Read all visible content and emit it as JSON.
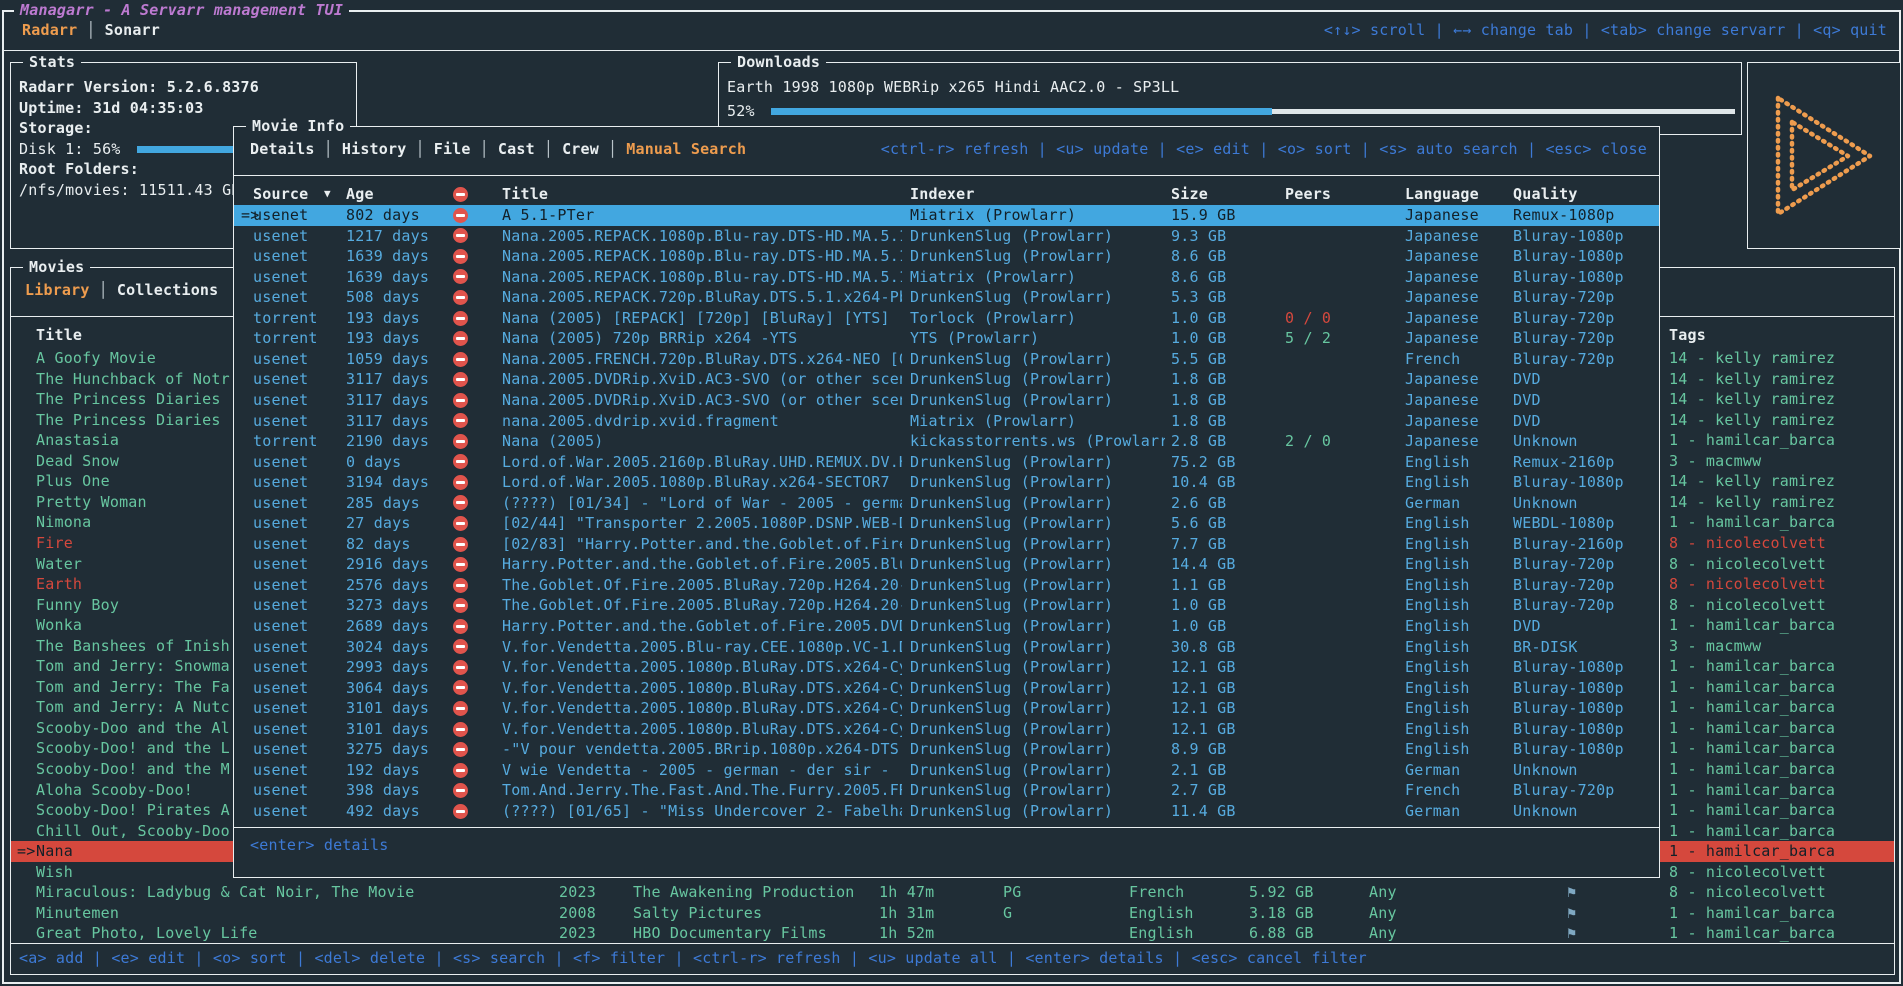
{
  "colors": {
    "background": "#202d36",
    "foreground": "#e9eef0",
    "accent_orange": "#ee9c4e",
    "title_magenta": "#bd7ad1",
    "keybind_blue": "#3d7ad6",
    "row_blue": "#56abdf",
    "green": "#67c6a0",
    "red": "#d5483d",
    "selection_blue": "#42a7e0",
    "selection_red": "#d5483d"
  },
  "app": {
    "title": "Managarr - A Servarr management TUI",
    "tabs": [
      {
        "label": "Radarr",
        "active": true
      },
      {
        "label": "Sonarr",
        "active": false
      }
    ],
    "shortcuts": [
      {
        "key": "<↑↓>",
        "label": "scroll"
      },
      {
        "key": "←→",
        "label": "change tab"
      },
      {
        "key": "<tab>",
        "label": "change servarr"
      },
      {
        "key": "<q>",
        "label": "quit"
      }
    ]
  },
  "stats": {
    "title": "Stats",
    "version_line": "Radarr Version:  5.2.6.8376",
    "uptime_line": "Uptime: 31d 04:35:03",
    "storage_label": "Storage:",
    "disk_line": "Disk 1: 56%",
    "disk_percent": 56,
    "root_label": "Root Folders:",
    "root_line": "/nfs/movies: 11511.43 GB"
  },
  "downloads": {
    "title": "Downloads",
    "release": "Earth 1998 1080p WEBRip x265 Hindi AAC2.0 - SP3LL",
    "percent_label": "52%",
    "percent_value": 52
  },
  "logo": {
    "icon": "play-logo"
  },
  "library": {
    "title": "Movies",
    "tabs": [
      {
        "label": "Library",
        "active": true
      },
      {
        "label": "Collections",
        "active": false
      }
    ],
    "columns": {
      "title": "Title",
      "tags": "Tags"
    },
    "items": [
      {
        "title": "A Goofy Movie",
        "tag": "14 - kelly ramirez"
      },
      {
        "title": "The Hunchback of Notr",
        "tag": "14 - kelly ramirez"
      },
      {
        "title": "The Princess Diaries",
        "tag": "14 - kelly ramirez"
      },
      {
        "title": "The Princess Diaries",
        "tag": "14 - kelly ramirez"
      },
      {
        "title": "Anastasia",
        "tag": "1 - hamilcar_barca"
      },
      {
        "title": "Dead Snow",
        "tag": "3 - macmww"
      },
      {
        "title": "Plus One",
        "tag": "14 - kelly ramirez"
      },
      {
        "title": "Pretty Woman",
        "tag": "14 - kelly ramirez"
      },
      {
        "title": "Nimona",
        "tag": "1 - hamilcar_barca"
      },
      {
        "title": "Fire",
        "titleColor": "red",
        "tag": "8 - nicolecolvett",
        "tagColor": "red"
      },
      {
        "title": "Water",
        "tag": "8 - nicolecolvett"
      },
      {
        "title": "Earth",
        "titleColor": "red",
        "tag": "8 - nicolecolvett",
        "tagColor": "red"
      },
      {
        "title": "Funny Boy",
        "tag": "8 - nicolecolvett"
      },
      {
        "title": "Wonka",
        "tag": "1 - hamilcar_barca"
      },
      {
        "title": "The Banshees of Inish",
        "tag": "3 - macmww"
      },
      {
        "title": "Tom and Jerry: Snowma",
        "tag": "1 - hamilcar_barca"
      },
      {
        "title": "Tom and Jerry: The Fa",
        "tag": "1 - hamilcar_barca"
      },
      {
        "title": "Tom and Jerry: A Nutc",
        "tag": "1 - hamilcar_barca"
      },
      {
        "title": "Scooby-Doo and the Al",
        "tag": "1 - hamilcar_barca"
      },
      {
        "title": "Scooby-Doo! and the L",
        "tag": "1 - hamilcar_barca"
      },
      {
        "title": "Scooby-Doo! and the M",
        "tag": "1 - hamilcar_barca"
      },
      {
        "title": "Aloha Scooby-Doo!",
        "tag": "1 - hamilcar_barca"
      },
      {
        "title": "Scooby-Doo! Pirates A",
        "tag": "1 - hamilcar_barca"
      },
      {
        "title": "Chill Out, Scooby-Doo",
        "tag": "1 - hamilcar_barca"
      },
      {
        "title": "Nana",
        "selected": true,
        "marker": "=>",
        "tag": "1 - hamilcar_barca"
      },
      {
        "title": "Wish",
        "tag": "8 - nicolecolvett"
      },
      {
        "title": "Miraculous: Ladybug & Cat Noir, The Movie",
        "year": "2023",
        "studio": "The Awakening Production",
        "runtime": "1h 47m",
        "rating": "PG",
        "language": "French",
        "size": "5.92 GB",
        "profile": "Any",
        "monitored": true,
        "tag": "8 - nicolecolvett"
      },
      {
        "title": "Minutemen",
        "year": "2008",
        "studio": "Salty Pictures",
        "runtime": "1h 31m",
        "rating": "G",
        "language": "English",
        "size": "3.18 GB",
        "profile": "Any",
        "monitored": true,
        "tag": "1 - hamilcar_barca"
      },
      {
        "title": "Great Photo, Lovely Life",
        "year": "2023",
        "studio": "HBO Documentary Films",
        "runtime": "1h 52m",
        "rating": "",
        "language": "English",
        "size": "6.88 GB",
        "profile": "Any",
        "monitored": true,
        "tag": "1 - hamilcar_barca"
      }
    ],
    "shortcuts": [
      {
        "key": "<a>",
        "label": "add"
      },
      {
        "key": "<e>",
        "label": "edit"
      },
      {
        "key": "<o>",
        "label": "sort"
      },
      {
        "key": "<del>",
        "label": "delete"
      },
      {
        "key": "<s>",
        "label": "search"
      },
      {
        "key": "<f>",
        "label": "filter"
      },
      {
        "key": "<ctrl-r>",
        "label": "refresh"
      },
      {
        "key": "<u>",
        "label": "update all"
      },
      {
        "key": "<enter>",
        "label": "details"
      },
      {
        "key": "<esc>",
        "label": "cancel filter"
      }
    ]
  },
  "search_modal": {
    "title": "Movie Info",
    "tabs": [
      {
        "label": "Details",
        "active": false
      },
      {
        "label": "History",
        "active": false
      },
      {
        "label": "File",
        "active": false
      },
      {
        "label": "Cast",
        "active": false
      },
      {
        "label": "Crew",
        "active": false
      },
      {
        "label": "Manual Search",
        "active": true
      }
    ],
    "shortcuts": [
      {
        "key": "<ctrl-r>",
        "label": "refresh"
      },
      {
        "key": "<u>",
        "label": "update"
      },
      {
        "key": "<e>",
        "label": "edit"
      },
      {
        "key": "<o>",
        "label": "sort"
      },
      {
        "key": "<s>",
        "label": "auto search"
      },
      {
        "key": "<esc>",
        "label": "close"
      }
    ],
    "columns": {
      "source": "Source",
      "sort_icon": "▼",
      "age": "Age",
      "title": "Title",
      "indexer": "Indexer",
      "size": "Size",
      "peers": "Peers",
      "language": "Language",
      "quality": "Quality"
    },
    "rows": [
      {
        "selected": true,
        "source": "usenet",
        "age": "802 days",
        "title": "A 5.1-PTer",
        "indexer": "Miatrix (Prowlarr)",
        "size": "15.9 GB",
        "peers": "",
        "language": "Japanese",
        "quality": "Remux-1080p"
      },
      {
        "source": "usenet",
        "age": "1217 days",
        "title": "Nana.2005.REPACK.1080p.Blu-ray.DTS-HD.MA.5.1",
        "indexer": "DrunkenSlug (Prowlarr)",
        "size": "9.3 GB",
        "peers": "",
        "language": "Japanese",
        "quality": "Bluray-1080p"
      },
      {
        "source": "usenet",
        "age": "1639 days",
        "title": "Nana.2005.REPACK.1080p.Blu-ray.DTS-HD.MA.5.1",
        "indexer": "DrunkenSlug (Prowlarr)",
        "size": "8.6 GB",
        "peers": "",
        "language": "Japanese",
        "quality": "Bluray-1080p"
      },
      {
        "source": "usenet",
        "age": "1639 days",
        "title": "Nana.2005.REPACK.1080p.Blu-ray.DTS-HD.MA.5.1",
        "indexer": "Miatrix (Prowlarr)",
        "size": "8.6 GB",
        "peers": "",
        "language": "Japanese",
        "quality": "Bluray-1080p"
      },
      {
        "source": "usenet",
        "age": "508 days",
        "title": "Nana.2005.REPACK.720p.BluRay.DTS.5.1.x264-Pb",
        "indexer": "DrunkenSlug (Prowlarr)",
        "size": "5.3 GB",
        "peers": "",
        "language": "Japanese",
        "quality": "Bluray-720p"
      },
      {
        "source": "torrent",
        "age": "193 days",
        "title": "Nana (2005) [REPACK] [720p] [BluRay] [YTS]",
        "indexer": "Torlock (Prowlarr)",
        "size": "1.0 GB",
        "peers": "0 / 0",
        "peersColor": "red",
        "language": "Japanese",
        "quality": "Bluray-720p"
      },
      {
        "source": "torrent",
        "age": "193 days",
        "title": "Nana (2005) 720p BRRip x264 -YTS",
        "indexer": "YTS (Prowlarr)",
        "size": "1.0 GB",
        "peers": "5 / 2",
        "peersColor": "green",
        "language": "Japanese",
        "quality": "Bluray-720p"
      },
      {
        "source": "usenet",
        "age": "1059 days",
        "title": "Nana.2005.FRENCH.720p.BluRay.DTS.x264-NEO [0",
        "indexer": "DrunkenSlug (Prowlarr)",
        "size": "5.5 GB",
        "peers": "",
        "language": "French",
        "quality": "Bluray-720p"
      },
      {
        "source": "usenet",
        "age": "3117 days",
        "title": "Nana.2005.DVDRip.XviD.AC3-SVO (or other scen",
        "indexer": "DrunkenSlug (Prowlarr)",
        "size": "1.8 GB",
        "peers": "",
        "language": "Japanese",
        "quality": "DVD"
      },
      {
        "source": "usenet",
        "age": "3117 days",
        "title": "Nana.2005.DVDRip.XviD.AC3-SVO (or other scen",
        "indexer": "DrunkenSlug (Prowlarr)",
        "size": "1.8 GB",
        "peers": "",
        "language": "Japanese",
        "quality": "DVD"
      },
      {
        "source": "usenet",
        "age": "3117 days",
        "title": "nana.2005.dvdrip.xvid.fragment",
        "indexer": "Miatrix (Prowlarr)",
        "size": "1.8 GB",
        "peers": "",
        "language": "Japanese",
        "quality": "DVD"
      },
      {
        "source": "torrent",
        "age": "2190 days",
        "title": "Nana (2005)",
        "indexer": "kickasstorrents.ws (Prowlarr",
        "size": "2.8 GB",
        "peers": "2 / 0",
        "peersColor": "green",
        "language": "Japanese",
        "quality": "Unknown"
      },
      {
        "source": "usenet",
        "age": "0 days",
        "title": "Lord.of.War.2005.2160p.BluRay.UHD.REMUX.DV.H",
        "indexer": "DrunkenSlug (Prowlarr)",
        "size": "75.2 GB",
        "peers": "",
        "language": "English",
        "quality": "Remux-2160p"
      },
      {
        "source": "usenet",
        "age": "3194 days",
        "title": "Lord.of.War.2005.1080p.BluRay.x264-SECTOR7",
        "indexer": "DrunkenSlug (Prowlarr)",
        "size": "10.4 GB",
        "peers": "",
        "language": "English",
        "quality": "Bluray-1080p"
      },
      {
        "source": "usenet",
        "age": "285 days",
        "title": "(????) [01/34] - \"Lord of War - 2005 - germa",
        "indexer": "DrunkenSlug (Prowlarr)",
        "size": "2.6 GB",
        "peers": "",
        "language": "German",
        "quality": "Unknown"
      },
      {
        "source": "usenet",
        "age": "27 days",
        "title": "[02/44] \"Transporter 2.2005.1080P.DSNP.WEB-D",
        "indexer": "DrunkenSlug (Prowlarr)",
        "size": "5.6 GB",
        "peers": "",
        "language": "English",
        "quality": "WEBDL-1080p"
      },
      {
        "source": "usenet",
        "age": "82 days",
        "title": "[02/83] \"Harry.Potter.and.the.Goblet.of.Fire",
        "indexer": "DrunkenSlug (Prowlarr)",
        "size": "7.7 GB",
        "peers": "",
        "language": "English",
        "quality": "Bluray-2160p"
      },
      {
        "source": "usenet",
        "age": "2916 days",
        "title": "Harry.Potter.and.the.Goblet.of.Fire.2005.Blu",
        "indexer": "DrunkenSlug (Prowlarr)",
        "size": "14.4 GB",
        "peers": "",
        "language": "English",
        "quality": "Bluray-720p"
      },
      {
        "source": "usenet",
        "age": "2576 days",
        "title": "The.Goblet.Of.Fire.2005.BluRay.720p.H264.20-",
        "indexer": "DrunkenSlug (Prowlarr)",
        "size": "1.1 GB",
        "peers": "",
        "language": "English",
        "quality": "Bluray-720p"
      },
      {
        "source": "usenet",
        "age": "3273 days",
        "title": "The.Goblet.Of.Fire.2005.BluRay.720p.H264.20-",
        "indexer": "DrunkenSlug (Prowlarr)",
        "size": "1.0 GB",
        "peers": "",
        "language": "English",
        "quality": "Bluray-720p"
      },
      {
        "source": "usenet",
        "age": "2689 days",
        "title": "Harry.Potter.and.the.Goblet.of.Fire.2005.DVD",
        "indexer": "DrunkenSlug (Prowlarr)",
        "size": "1.0 GB",
        "peers": "",
        "language": "English",
        "quality": "DVD"
      },
      {
        "source": "usenet",
        "age": "3024 days",
        "title": "V.for.Vendetta.2005.Blu-ray.CEE.1080p.VC-1.D",
        "indexer": "DrunkenSlug (Prowlarr)",
        "size": "30.8 GB",
        "peers": "",
        "language": "English",
        "quality": "BR-DISK"
      },
      {
        "source": "usenet",
        "age": "2993 days",
        "title": "V.for.Vendetta.2005.1080p.BluRay.DTS.x264-Cy",
        "indexer": "DrunkenSlug (Prowlarr)",
        "size": "12.1 GB",
        "peers": "",
        "language": "English",
        "quality": "Bluray-1080p"
      },
      {
        "source": "usenet",
        "age": "3064 days",
        "title": "V.for.Vendetta.2005.1080p.BluRay.DTS.x264-Cy",
        "indexer": "DrunkenSlug (Prowlarr)",
        "size": "12.1 GB",
        "peers": "",
        "language": "English",
        "quality": "Bluray-1080p"
      },
      {
        "source": "usenet",
        "age": "3101 days",
        "title": "V.for.Vendetta.2005.1080p.BluRay.DTS.x264-Cy",
        "indexer": "DrunkenSlug (Prowlarr)",
        "size": "12.1 GB",
        "peers": "",
        "language": "English",
        "quality": "Bluray-1080p"
      },
      {
        "source": "usenet",
        "age": "3101 days",
        "title": "V.for.Vendetta.2005.1080p.BluRay.DTS.x264-Cy",
        "indexer": "DrunkenSlug (Prowlarr)",
        "size": "12.1 GB",
        "peers": "",
        "language": "English",
        "quality": "Bluray-1080p"
      },
      {
        "source": "usenet",
        "age": "3275 days",
        "title": "-\"V pour vendetta.2005.BRrip.1080p.x264-DTS.",
        "indexer": "DrunkenSlug (Prowlarr)",
        "size": "8.9 GB",
        "peers": "",
        "language": "English",
        "quality": "Bluray-1080p"
      },
      {
        "source": "usenet",
        "age": "192 days",
        "title": "V wie Vendetta - 2005 - german - der sir - [",
        "indexer": "DrunkenSlug (Prowlarr)",
        "size": "2.1 GB",
        "peers": "",
        "language": "German",
        "quality": "Unknown"
      },
      {
        "source": "usenet",
        "age": "398 days",
        "title": "Tom.And.Jerry.The.Fast.And.The.Furry.2005.FR",
        "indexer": "DrunkenSlug (Prowlarr)",
        "size": "2.7 GB",
        "peers": "",
        "language": "French",
        "quality": "Bluray-720p"
      },
      {
        "source": "usenet",
        "age": "492 days",
        "title": "(????) [01/65] - \"Miss Undercover 2- Fabelha",
        "indexer": "DrunkenSlug (Prowlarr)",
        "size": "11.4 GB",
        "peers": "",
        "language": "German",
        "quality": "Unknown"
      }
    ],
    "footer_shortcuts": [
      {
        "key": "<enter>",
        "label": "details"
      }
    ]
  }
}
